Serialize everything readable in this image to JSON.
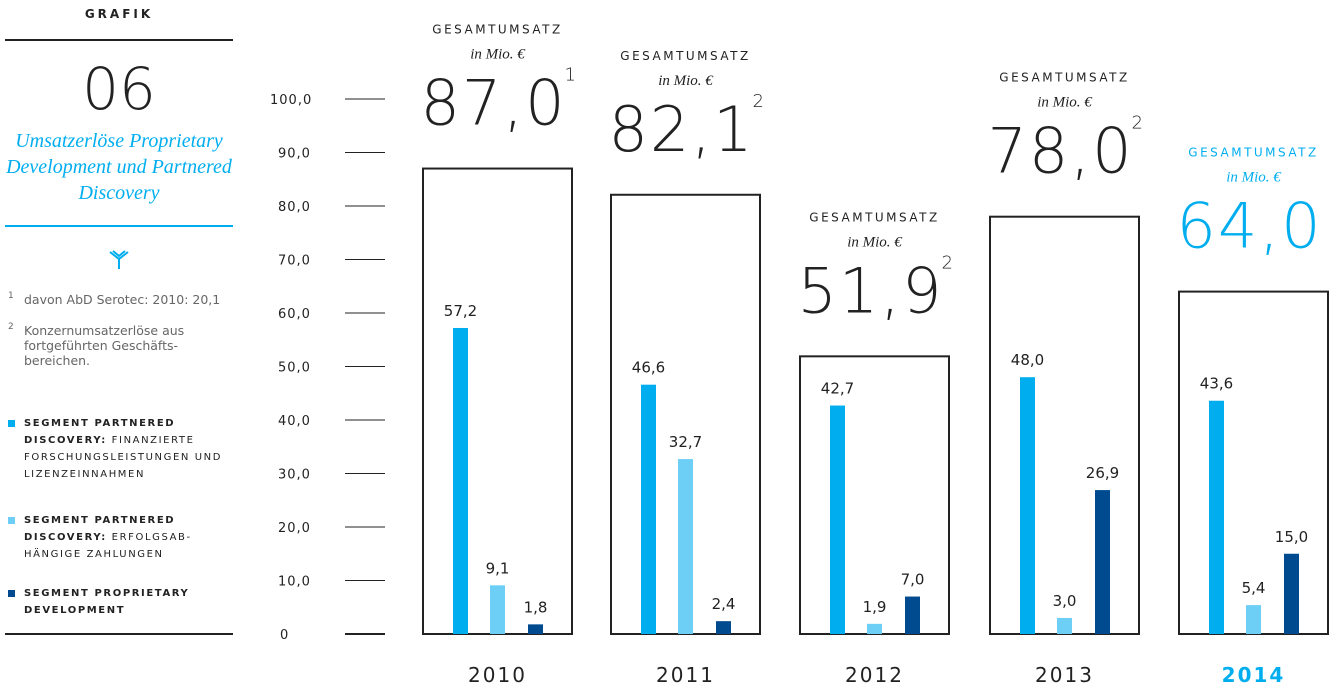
{
  "chart_data": {
    "type": "bar",
    "panel_label": "GRAFIK",
    "number": "06",
    "title": "Umsatzerlöse Proprietary Development und Partnered Discovery",
    "footnotes": [
      {
        "marker": "1",
        "text": "davon AbD Serotec: 2010: 20,1"
      },
      {
        "marker": "2",
        "text": "Konzernumsatzerlöse aus fortgeführten Geschäfts-bereichen."
      }
    ],
    "total_label": "GESAMTUMSATZ",
    "total_unit": "in Mio. €",
    "categories": [
      "2010",
      "2011",
      "2012",
      "2013",
      "2014"
    ],
    "highlight": "2014",
    "highlight_color": "#00aeef",
    "totals": [
      87.0,
      82.1,
      51.9,
      78.0,
      64.0
    ],
    "totals_labels": [
      "87,0",
      "82,1",
      "51,9",
      "78,0",
      "64,0"
    ],
    "totals_notes": [
      "1",
      "2",
      "2",
      "2",
      null
    ],
    "series": [
      {
        "name": "SEGMENT PARTNERED DISCOVERY:",
        "description": "FINANZIERTE FORSCHUNGSLEISTUNGEN UND LIZENZEINNAHMEN",
        "color": "#00aeef",
        "values": [
          57.2,
          46.6,
          42.7,
          48.0,
          43.6
        ],
        "value_labels": [
          "57,2",
          "46,6",
          "42,7",
          "48,0",
          "43,6"
        ]
      },
      {
        "name": "SEGMENT PARTNERED DISCOVERY:",
        "description": "ERFOLGSAB-HÄNGIGE ZAHLUNGEN",
        "color": "#6dcff6",
        "values": [
          9.1,
          32.7,
          1.9,
          3.0,
          5.4
        ],
        "value_labels": [
          "9,1",
          "32,7",
          "1,9",
          "3,0",
          "5,4"
        ]
      },
      {
        "name": "SEGMENT PROPRIETARY DEVELOPMENT",
        "color": "#004a8f",
        "values": [
          1.8,
          2.4,
          7.0,
          26.9,
          15.0
        ],
        "value_labels": [
          "1,8",
          "2,4",
          "7,0",
          "26,9",
          "15,0"
        ]
      }
    ],
    "ylim": [
      0,
      100
    ],
    "yticks": [
      0,
      {
        "value": 10,
        "label": "10,0"
      },
      {
        "value": 20,
        "label": "20,0"
      },
      {
        "value": 30,
        "label": "30,0"
      },
      {
        "value": 40,
        "label": "40,0"
      },
      {
        "value": 50,
        "label": "50,0"
      },
      {
        "value": 60,
        "label": "60,0"
      },
      {
        "value": 70,
        "label": "70,0"
      },
      {
        "value": 80,
        "label": "80,0"
      },
      {
        "value": 90,
        "label": "90,0"
      },
      {
        "value": 100,
        "label": "100,0"
      }
    ]
  }
}
